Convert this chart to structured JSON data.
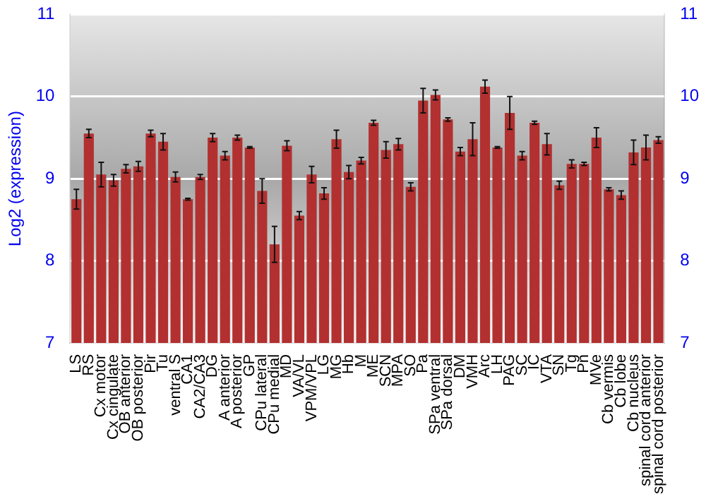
{
  "chart_data": {
    "type": "bar",
    "ylabel": "Log2 (expression)",
    "categories": [
      "LS",
      "RS",
      "Cx motor",
      "Cx cingulate",
      "OB anterior",
      "OB posterior",
      "Pir",
      "Tu",
      "ventral S",
      "CA1",
      "CA2/CA3",
      "DG",
      "A anterior",
      "A posterior",
      "GP",
      "CPu lateral",
      "CPu medial",
      "MD",
      "VA/VL",
      "VPM/VPL",
      "LG",
      "MG",
      "Hb",
      "M",
      "ME",
      "SCN",
      "MPA",
      "SO",
      "Pa",
      "SPa ventral",
      "SPa dorsal",
      "DM",
      "VMH",
      "Arc",
      "LH",
      "PAG",
      "SC",
      "IC",
      "VTA",
      "SN",
      "Tg",
      "Pn",
      "MVe",
      "Cb vermis",
      "Cb lobe",
      "Cb nucleus",
      "spinal cord anterior",
      "spinal cord posterior"
    ],
    "series": [
      {
        "color": "#b33030",
        "values": [
          8.75,
          9.55,
          9.05,
          8.98,
          9.12,
          9.15,
          9.55,
          9.45,
          9.02,
          8.75,
          9.02,
          9.5,
          9.28,
          9.5,
          9.38,
          8.85,
          8.2,
          9.4,
          8.55,
          9.05,
          8.82,
          9.48,
          9.08,
          9.22,
          9.68,
          9.35,
          9.42,
          8.9,
          9.95,
          10.02,
          9.72,
          9.33,
          9.48,
          10.12,
          9.38,
          9.8,
          9.28,
          9.68,
          9.42,
          8.92,
          9.18,
          9.18,
          9.5,
          8.87,
          8.8,
          9.32,
          9.38,
          9.47
        ],
        "errors": [
          0.12,
          0.05,
          0.15,
          0.07,
          0.05,
          0.06,
          0.04,
          0.1,
          0.06,
          0.01,
          0.03,
          0.05,
          0.05,
          0.03,
          0.01,
          0.15,
          0.22,
          0.06,
          0.05,
          0.1,
          0.07,
          0.11,
          0.08,
          0.04,
          0.03,
          0.1,
          0.07,
          0.05,
          0.15,
          0.06,
          0.02,
          0.05,
          0.2,
          0.08,
          0.01,
          0.2,
          0.05,
          0.02,
          0.13,
          0.05,
          0.05,
          0.02,
          0.12,
          0.02,
          0.05,
          0.15,
          0.15,
          0.04
        ]
      }
    ],
    "ylim": [
      7,
      11
    ],
    "yticks": [
      7,
      8,
      9,
      10,
      11
    ],
    "y2lim": [
      7,
      11
    ],
    "y2ticks": [
      7,
      8,
      9,
      10,
      11
    ],
    "grid": "y",
    "legend": false
  }
}
